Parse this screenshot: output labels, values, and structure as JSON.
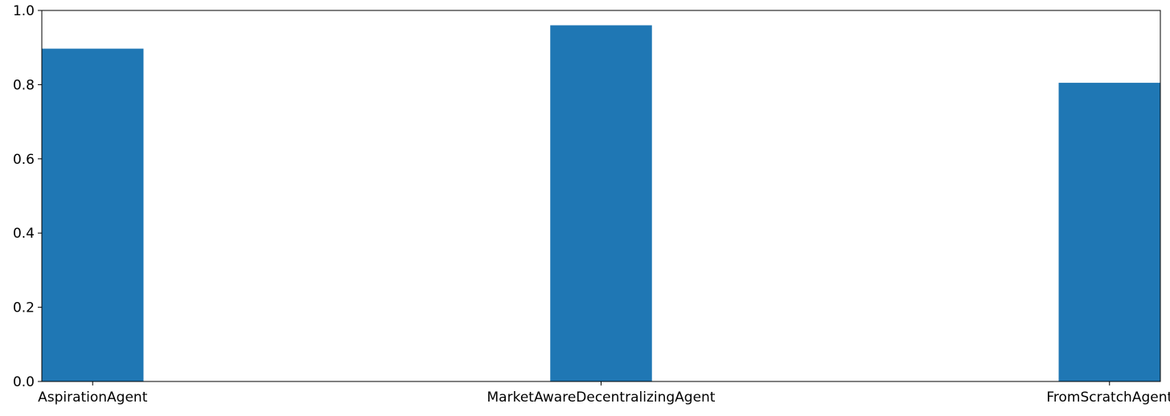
{
  "chart_data": {
    "type": "bar",
    "title": "",
    "xlabel": "",
    "ylabel": "",
    "categories": [
      "AspirationAgent",
      "MarketAwareDecentralizingAgent",
      "FromScratchAgent"
    ],
    "values": [
      0.897,
      0.96,
      0.805
    ],
    "ylim": [
      0,
      1.0
    ],
    "yticks": [
      0.0,
      0.2,
      0.4,
      0.6,
      0.8,
      1.0
    ],
    "ytick_labels": [
      "0.0",
      "0.2",
      "0.4",
      "0.6",
      "0.8",
      "1.0"
    ],
    "bar_color": "#1f77b4",
    "grid": false,
    "legend": "none"
  }
}
